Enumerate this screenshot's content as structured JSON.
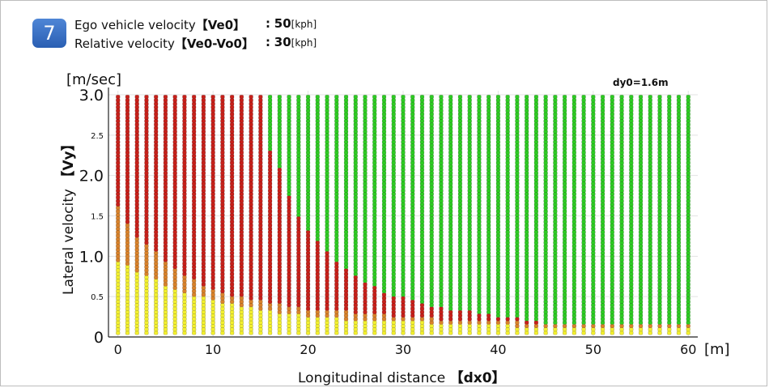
{
  "header": {
    "badge": "7",
    "line1_label": "Ego vehicle velocity",
    "line1_symbol": "【Ve0】",
    "line1_sep": ":",
    "line1_value": "50",
    "line1_unit": "[kph]",
    "line2_label": "Relative velocity",
    "line2_symbol": "【Ve0-Vo0】",
    "line2_sep": ":",
    "line2_value": "30",
    "line2_unit": "[kph]"
  },
  "chart_data": {
    "type": "scatter",
    "annotation": "dy0=1.6m",
    "xlabel_text": "Longitudinal distance ",
    "xlabel_symbol": "【dx0】",
    "ylabel_text": "Lateral velocity ",
    "ylabel_symbol": "【Vy】",
    "x_unit": "[m]",
    "y_unit": "[m/sec]",
    "xlim": [
      -1,
      61
    ],
    "ylim": [
      0,
      3.05
    ],
    "x_ticks": [
      0,
      10,
      20,
      30,
      40,
      50,
      60
    ],
    "y_ticks_major": [
      {
        "v": 0,
        "label": "0"
      },
      {
        "v": 1.0,
        "label": "1.0"
      },
      {
        "v": 2.0,
        "label": "2.0"
      },
      {
        "v": 3.0,
        "label": "3.0"
      }
    ],
    "y_ticks_minor": [
      {
        "v": 0.5,
        "label": "0.5"
      },
      {
        "v": 1.5,
        "label": "1.5"
      },
      {
        "v": 2.5,
        "label": "2.5"
      }
    ],
    "grid": true,
    "x_step": 1,
    "vy_max": 3.0,
    "vy_min": 0.05,
    "colors": {
      "red": "#c8201a",
      "green": "#2ecc23",
      "orange": "#d9822b",
      "yellow": "#f2ef30",
      "dark": "#4a1010"
    },
    "zones": {
      "green_boundary": [
        [
          15.5,
          3.0
        ],
        [
          16,
          2.3
        ],
        [
          17,
          2.1
        ],
        [
          18,
          1.75
        ],
        [
          19,
          1.5
        ],
        [
          20,
          1.3
        ],
        [
          21,
          1.17
        ],
        [
          22,
          1.05
        ],
        [
          23,
          0.95
        ],
        [
          24,
          0.85
        ],
        [
          25,
          0.75
        ],
        [
          26,
          0.68
        ],
        [
          27,
          0.62
        ],
        [
          28,
          0.56
        ],
        [
          29,
          0.52
        ],
        [
          30,
          0.48
        ],
        [
          31,
          0.45
        ],
        [
          32,
          0.42
        ],
        [
          33,
          0.39
        ],
        [
          34,
          0.37
        ],
        [
          35,
          0.35
        ],
        [
          36,
          0.33
        ],
        [
          37,
          0.31
        ],
        [
          38,
          0.3
        ],
        [
          39,
          0.28
        ],
        [
          40,
          0.26
        ],
        [
          41,
          0.24
        ],
        [
          42,
          0.23
        ],
        [
          43,
          0.2
        ],
        [
          44,
          0.18
        ],
        [
          45,
          0.16
        ],
        [
          60,
          0.16
        ]
      ],
      "red_lower": [
        [
          0,
          1.6
        ],
        [
          2,
          1.25
        ],
        [
          4,
          1.05
        ],
        [
          6,
          0.85
        ],
        [
          8,
          0.7
        ],
        [
          10,
          0.6
        ],
        [
          12,
          0.52
        ],
        [
          14,
          0.46
        ],
        [
          16,
          0.42
        ],
        [
          18,
          0.38
        ],
        [
          20,
          0.35
        ],
        [
          22,
          0.33
        ],
        [
          24,
          0.31
        ],
        [
          26,
          0.29
        ],
        [
          28,
          0.27
        ],
        [
          30,
          0.25
        ],
        [
          34,
          0.22
        ],
        [
          38,
          0.2
        ],
        [
          42,
          0.18
        ],
        [
          46,
          0.15
        ],
        [
          60,
          0.15
        ]
      ],
      "yellow_upper": [
        [
          0,
          0.95
        ],
        [
          2,
          0.8
        ],
        [
          4,
          0.7
        ],
        [
          6,
          0.6
        ],
        [
          8,
          0.52
        ],
        [
          10,
          0.46
        ],
        [
          12,
          0.4
        ],
        [
          14,
          0.36
        ],
        [
          16,
          0.32
        ],
        [
          18,
          0.29
        ],
        [
          20,
          0.26
        ],
        [
          24,
          0.22
        ],
        [
          28,
          0.2
        ],
        [
          32,
          0.18
        ],
        [
          36,
          0.16
        ],
        [
          40,
          0.14
        ],
        [
          50,
          0.12
        ],
        [
          60,
          0.12
        ]
      ]
    }
  }
}
